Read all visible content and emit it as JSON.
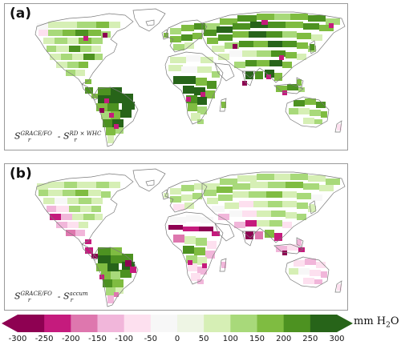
{
  "panels": [
    {
      "label": "(a)",
      "formula": {
        "main": "S",
        "sup1": "GRACE/FO",
        "sub1": "r",
        "minus": " - ",
        "sup2": "RD × WHC",
        "sub2": "r"
      }
    },
    {
      "label": "(b)",
      "formula": {
        "main": "S",
        "sup1": "GRACE/FO",
        "sub1": "r",
        "minus": " - ",
        "sup2": "accum",
        "sub2": "r"
      }
    }
  ],
  "colorbar": {
    "unit_text": "mm H",
    "unit_sub": "2",
    "unit_tail": "O",
    "ticks": [
      "-300",
      "-250",
      "-200",
      "-150",
      "-100",
      "-50",
      "0",
      "50",
      "100",
      "150",
      "200",
      "250",
      "300"
    ],
    "colors": [
      "#8e0152",
      "#c51b7d",
      "#de77ae",
      "#f1b6da",
      "#fde0ef",
      "#f7f7f7",
      "#eef5e4",
      "#d6efb5",
      "#a8d97a",
      "#7fbc41",
      "#4d9221",
      "#276419"
    ],
    "extend": "both"
  },
  "map_palette": {
    "dark_green": "#276419",
    "mid_green": "#4d9221",
    "green": "#7fbc41",
    "light_green": "#a8d97a",
    "pale_green": "#d6efb5",
    "white": "#f7f7f7",
    "pale_pink": "#fde0ef",
    "pink": "#f1b6da",
    "mid_pink": "#de77ae",
    "magenta": "#c51b7d",
    "dark_magenta": "#8e0152",
    "coast": "#7a7a7a"
  }
}
